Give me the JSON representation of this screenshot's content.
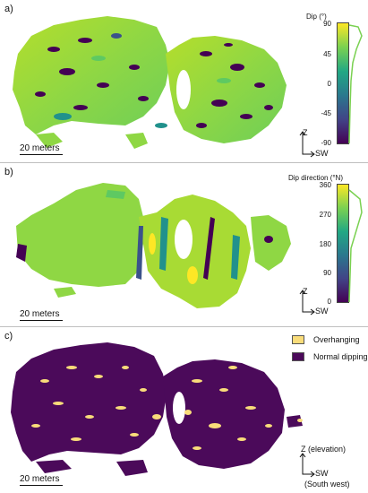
{
  "panel_a": {
    "label": "a)",
    "scale_label": "20 meters",
    "colorbar_title": "Dip (°)",
    "ticks": [
      "90",
      "45",
      "0",
      "-45",
      "-90"
    ],
    "axis_z": "Z",
    "axis_sw": "SW",
    "colors": [
      "#fde725",
      "#7ad151",
      "#22a884",
      "#2a788e",
      "#414487",
      "#440154"
    ]
  },
  "panel_b": {
    "label": "b)",
    "scale_label": "20 meters",
    "colorbar_title": "Dip direction (°N)",
    "ticks": [
      "360",
      "270",
      "180",
      "90",
      "0"
    ],
    "axis_z": "Z",
    "axis_sw": "SW"
  },
  "panel_c": {
    "label": "c)",
    "scale_label": "20 meters",
    "legend": [
      {
        "label": "Overhanging",
        "color": "#f9dc7a"
      },
      {
        "label": "Normal dipping",
        "color": "#4b0a5a"
      }
    ],
    "axis_z": "Z (elevation)",
    "axis_sw": "SW",
    "axis_sw_sub": "(South west)"
  }
}
